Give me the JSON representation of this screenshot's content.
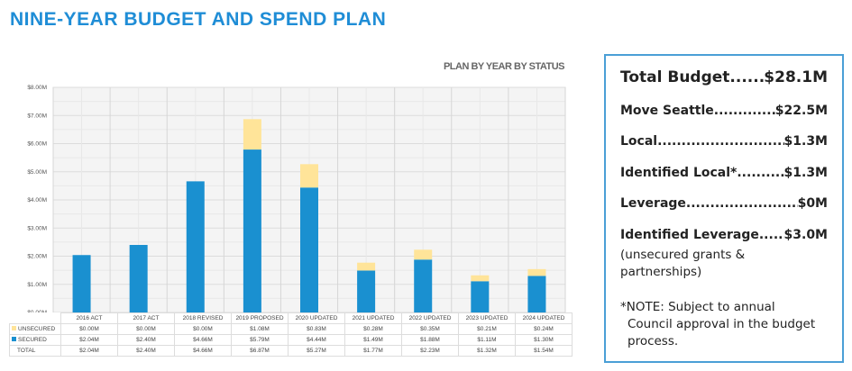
{
  "title": "NINE-YEAR BUDGET AND SPEND PLAN",
  "chart_data": {
    "type": "bar",
    "stacked": true,
    "title": "PLAN BY YEAR BY STATUS",
    "categories": [
      "2016 ACT",
      "2017 ACT",
      "2018 REVISED",
      "2019 PROPOSED",
      "2020 UPDATED",
      "2021 UPDATED",
      "2022 UPDATED",
      "2023 UPDATED",
      "2024 UPDATED"
    ],
    "yticks": [
      "$0.00M",
      "$1.00M",
      "$2.00M",
      "$3.00M",
      "$4.00M",
      "$5.00M",
      "$6.00M",
      "$7.00M",
      "$8.00M"
    ],
    "ylim": [
      0,
      8
    ],
    "series": [
      {
        "name": "SECURED",
        "color": "#1a90d0",
        "values": [
          2.04,
          2.4,
          4.66,
          5.79,
          4.44,
          1.49,
          1.88,
          1.11,
          1.3
        ],
        "labels": [
          "$2.04M",
          "$2.40M",
          "$4.66M",
          "$5.79M",
          "$4.44M",
          "$1.49M",
          "$1.88M",
          "$1.11M",
          "$1.30M"
        ]
      },
      {
        "name": "UNSECURED",
        "color": "#ffe499",
        "values": [
          0,
          0,
          0,
          1.08,
          0.83,
          0.28,
          0.35,
          0.21,
          0.24
        ],
        "labels": [
          "$0.00M",
          "$0.00M",
          "$0.00M",
          "$1.08M",
          "$0.83M",
          "$0.28M",
          "$0.35M",
          "$0.21M",
          "$0.24M"
        ]
      }
    ],
    "total": {
      "name": "TOTAL",
      "labels": [
        "$2.04M",
        "$2.40M",
        "$4.66M",
        "$6.87M",
        "$5.27M",
        "$1.77M",
        "$2.23M",
        "$1.32M",
        "$1.54M"
      ]
    },
    "grid": true
  },
  "summary": {
    "total": {
      "label": "Total Budget ",
      "value": " $28.1M"
    },
    "items": [
      {
        "label": "Move Seattle",
        "value": "$22.5M"
      },
      {
        "label": "Local",
        "value": "$1.3M"
      },
      {
        "label": "Identified Local* ",
        "value": "$1.3M"
      },
      {
        "label": "Leverage",
        "value": " $0M"
      },
      {
        "label": "Identified Leverage",
        "value": "$3.0M"
      }
    ],
    "leverage_note": "(unsecured grants & partnerships)",
    "note_line1": "*NOTE: Subject to annual",
    "note_line2": "Council approval in the budget process."
  }
}
